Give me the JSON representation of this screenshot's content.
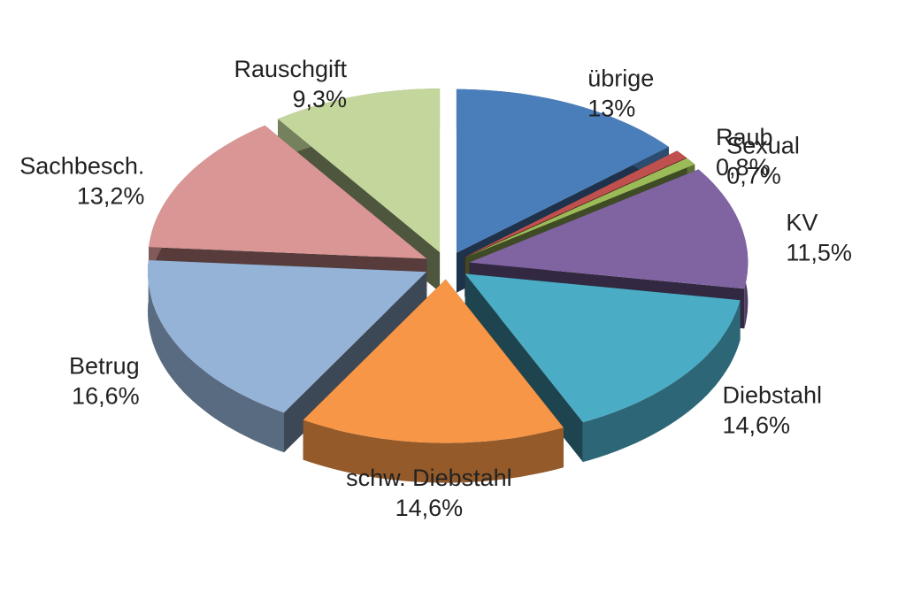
{
  "chart_data": {
    "type": "pie",
    "categories": [
      "übrige",
      "Raub",
      "Sexual",
      "KV",
      "Diebstahl",
      "schw. Diebstahl",
      "Betrug",
      "Sachbesch.",
      "Rauschgift"
    ],
    "values": [
      13,
      0.8,
      0.7,
      11.5,
      14.6,
      14.6,
      16.6,
      13.2,
      9.3
    ],
    "value_labels": [
      "13%",
      "0,8%",
      "0,7%",
      "11,5%",
      "14,6%",
      "14,6%",
      "16,6%",
      "13,2%",
      "9,3%"
    ],
    "colors": [
      "#4a7ebb",
      "#c0504d",
      "#9bbb59",
      "#8064a2",
      "#4bacc6",
      "#f79646",
      "#95b3d7",
      "#d99694",
      "#c3d69b"
    ]
  }
}
